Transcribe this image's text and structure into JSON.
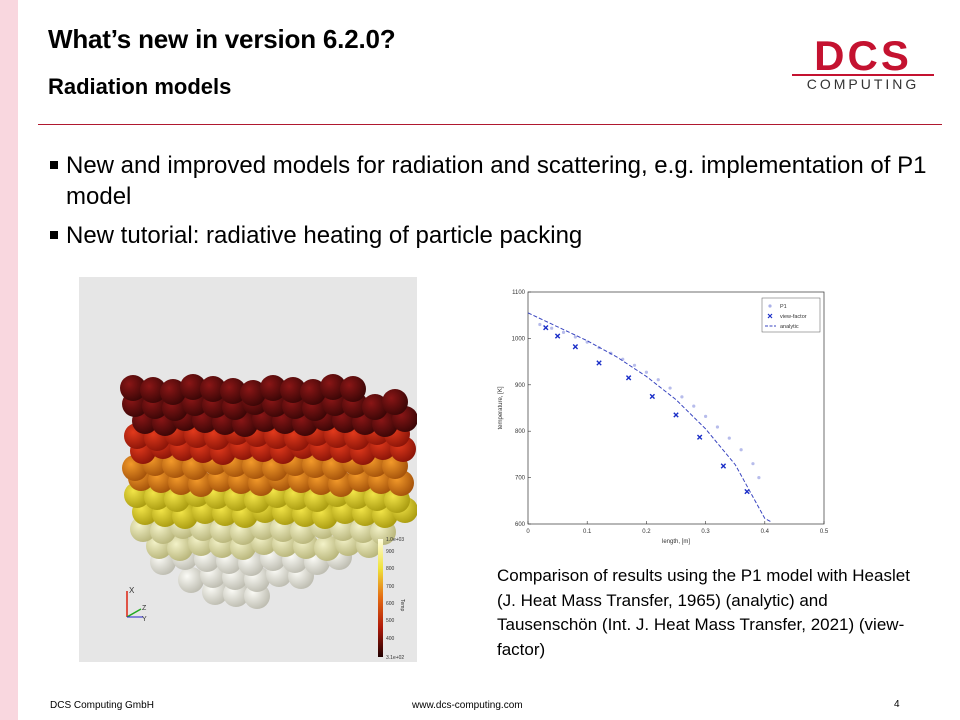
{
  "slide": {
    "title": "What’s new in version 6.2.0?",
    "subtitle": "Radiation models",
    "bullets": [
      "New and improved models for radiation and scattering, e.g. implementation of P1 model",
      "New tutorial: radiative heating of particle packing"
    ],
    "caption": "Comparison of results using the P1 model with Heaslet (J. Heat Mass Transfer, 1965) (analytic) and Tausenschön (Int. J. Heat Mass Transfer, 2021) (view-factor)",
    "footer": {
      "company": "DCS Computing GmbH",
      "url": "www.dcs-computing.com",
      "page": "4"
    },
    "brand_color": "#b0182f"
  },
  "logo": {
    "line1": "DCS",
    "line2": "COMPUTING",
    "color": "#c41230"
  },
  "render": {
    "colorbar_title": "Temp",
    "colorbar_max_label": "1.0e+03",
    "colorbar_min_label": "3.1e+02",
    "colorbar_ticks": [
      "900",
      "800",
      "700",
      "600",
      "500",
      "400"
    ],
    "axis_labels": {
      "x": "X",
      "y": "Y",
      "z": "Z"
    }
  },
  "chart_data": {
    "type": "scatter",
    "xlabel": "length, [m]",
    "ylabel": "temperature, [K]",
    "xlim": [
      0,
      0.5
    ],
    "ylim": [
      600,
      1100
    ],
    "xticks": [
      "0",
      "0.1",
      "0.2",
      "0.3",
      "0.4",
      "0.5"
    ],
    "yticks": [
      "600",
      "700",
      "800",
      "900",
      "1000",
      "1100"
    ],
    "legend_position": "top-right",
    "series": [
      {
        "name": "P1",
        "style": "dots",
        "color": "#aab0e8",
        "x": [
          0.02,
          0.04,
          0.06,
          0.08,
          0.1,
          0.12,
          0.14,
          0.16,
          0.18,
          0.2,
          0.22,
          0.24,
          0.26,
          0.28,
          0.3,
          0.32,
          0.34,
          0.36,
          0.38,
          0.39
        ],
        "y": [
          1030,
          1022,
          1013,
          1003,
          992,
          980,
          968,
          955,
          942,
          927,
          911,
          893,
          874,
          854,
          832,
          809,
          785,
          760,
          730,
          700
        ]
      },
      {
        "name": "view-factor",
        "style": "x",
        "color": "#1a2ec8",
        "x": [
          0.03,
          0.05,
          0.08,
          0.12,
          0.17,
          0.21,
          0.25,
          0.29,
          0.33,
          0.37
        ],
        "y": [
          1023,
          1005,
          982,
          947,
          915,
          875,
          835,
          787,
          725,
          670
        ]
      },
      {
        "name": "analytic",
        "style": "dashed",
        "color": "#3a46c0",
        "x": [
          0.0,
          0.05,
          0.1,
          0.15,
          0.2,
          0.25,
          0.3,
          0.35,
          0.4,
          0.41
        ],
        "y": [
          1055,
          1025,
          995,
          960,
          918,
          868,
          805,
          728,
          612,
          605
        ]
      }
    ]
  }
}
